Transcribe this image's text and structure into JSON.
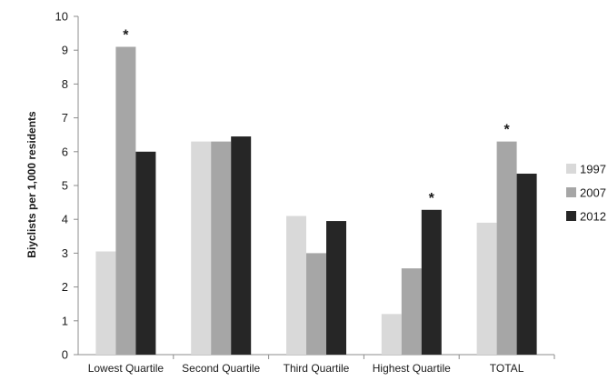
{
  "chart_data": {
    "type": "bar",
    "title": "",
    "xlabel": "",
    "ylabel": "Biyclists per 1,000 residents",
    "ylim": [
      0,
      10
    ],
    "yticks": [
      0,
      1,
      2,
      3,
      4,
      5,
      6,
      7,
      8,
      9,
      10
    ],
    "grid": false,
    "legend_position": "right",
    "categories": [
      "Lowest Quartile",
      "Second Quartile",
      "Third Quartile",
      "Highest Quartile",
      "TOTAL"
    ],
    "series": [
      {
        "name": "1997",
        "color": "#d9d9d9",
        "values": [
          3.05,
          6.3,
          4.1,
          1.2,
          3.9
        ]
      },
      {
        "name": "2007",
        "color": "#a6a6a6",
        "values": [
          9.1,
          6.3,
          3.0,
          2.55,
          6.3
        ]
      },
      {
        "name": "2012",
        "color": "#262626",
        "values": [
          6.0,
          6.45,
          3.95,
          4.28,
          5.35
        ]
      }
    ],
    "annotations": [
      {
        "text": "*",
        "category": "Lowest Quartile",
        "series": "2007"
      },
      {
        "text": "*",
        "category": "Highest Quartile",
        "series": "2012"
      },
      {
        "text": "*",
        "category": "TOTAL",
        "series": "2007"
      }
    ]
  }
}
